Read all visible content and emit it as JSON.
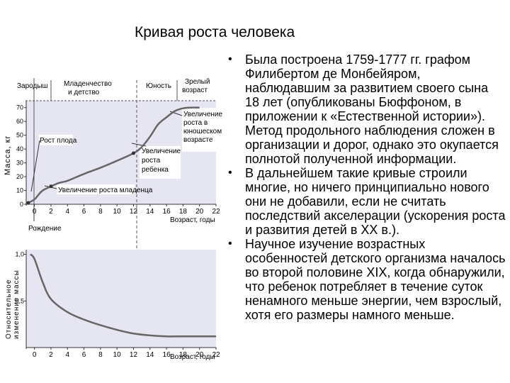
{
  "slide": {
    "title": "Кривая роста человека",
    "bullets": [
      "Была построена 1759-1777 гг. графом Филибертом де Монбейяром, наблюдавшим за развитием своего сына 18 лет (опубликованы Бюффоном, в приложении к «Естественной истории»). Метод продольного наблюдения сложен в организации и дорог, однако это окупается полнотой полученной информации.",
      "В дальнейшем такие кривые строили многие, но ничего принципиально нового они не добавили, если не считать последствий акселерации (ускорения роста и развития детей в XX в.).",
      "Научное изучение возрастных особенностей детского организма началось во второй половине XIX, когда обнаружили, что ребенок потребляет в течение суток ненамного меньше энергии, чем взрослый, хотя его размеры намного меньше."
    ]
  },
  "chart_data": [
    {
      "type": "line",
      "xlabel": "Возраст, годы",
      "ylabel": "Масса, кг",
      "x_ticks": [
        "0",
        "2",
        "4",
        "6",
        "8",
        "10",
        "12",
        "14",
        "16",
        "18",
        "20",
        "22"
      ],
      "y_ticks": [
        "0",
        "10",
        "20",
        "30",
        "40",
        "50",
        "60",
        "70"
      ],
      "xlim": [
        -1,
        22
      ],
      "ylim": [
        0,
        75
      ],
      "x": [
        -0.75,
        0,
        0.5,
        1,
        2,
        3,
        4,
        6,
        8,
        10,
        12,
        13,
        14,
        15,
        16,
        17,
        18,
        19,
        20
      ],
      "y": [
        1,
        3.5,
        7,
        10,
        13,
        15.5,
        17,
        22,
        26.5,
        31.5,
        37,
        41.5,
        49,
        58,
        63,
        67.5,
        69.5,
        70,
        70
      ],
      "period_labels": [
        "Зародыш",
        "Младенчество и детство",
        "Юность",
        "Зрелый возраст"
      ],
      "annotations": [
        "Рост плода",
        "Увеличение роста младенца",
        "Увеличение роста ребенка",
        "Увеличение роста в юношеском возрасте",
        "Рождение"
      ]
    },
    {
      "type": "line",
      "xlabel": "Возраст, годы",
      "ylabel": "Относительное изменение массы",
      "x_ticks": [
        "0",
        "2",
        "4",
        "6",
        "8",
        "10",
        "12",
        "14",
        "16",
        "18",
        "20",
        "22"
      ],
      "y_ticks": [
        "1,0",
        "0,5"
      ],
      "xlim": [
        -1,
        22
      ],
      "ylim": [
        0,
        1.05
      ],
      "x": [
        -0.5,
        0,
        1,
        2,
        4,
        6,
        8,
        10,
        12,
        14,
        16,
        18,
        20,
        22
      ],
      "y": [
        1.0,
        0.95,
        0.7,
        0.52,
        0.38,
        0.3,
        0.24,
        0.19,
        0.15,
        0.13,
        0.12,
        0.12,
        0.12,
        0.12
      ]
    }
  ]
}
